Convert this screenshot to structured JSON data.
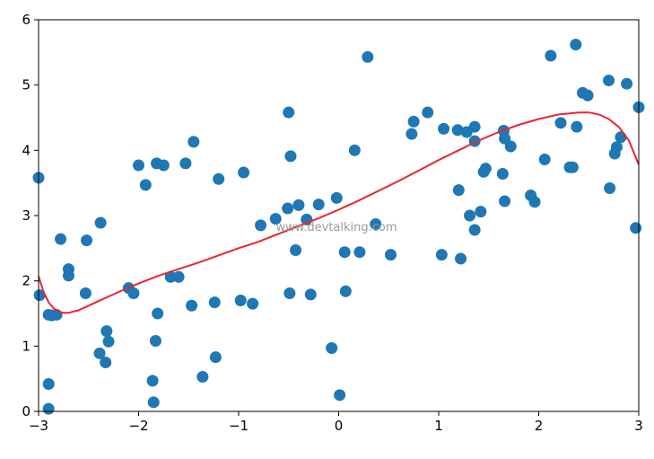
{
  "watermark": "www.devtalking.com",
  "chart_data": {
    "type": "scatter",
    "title": "",
    "xlabel": "",
    "ylabel": "",
    "xlim": [
      -3,
      3
    ],
    "ylim": [
      0,
      6
    ],
    "x_ticks": [
      -3,
      -2,
      -1,
      0,
      1,
      2,
      3
    ],
    "x_tick_labels": [
      "−3",
      "−2",
      "−1",
      "0",
      "1",
      "2",
      "3"
    ],
    "y_ticks": [
      0,
      1,
      2,
      3,
      4,
      5,
      6
    ],
    "y_tick_labels": [
      "0",
      "1",
      "2",
      "3",
      "4",
      "5",
      "6"
    ],
    "grid": false,
    "series": [
      {
        "kind": "scatter",
        "color": "#1f77b4",
        "points": [
          [
            -3.0,
            3.58
          ],
          [
            -2.99,
            1.78
          ],
          [
            -2.9,
            1.48
          ],
          [
            -2.87,
            1.47
          ],
          [
            -2.82,
            1.48
          ],
          [
            -2.9,
            0.42
          ],
          [
            -2.9,
            0.04
          ],
          [
            -2.78,
            2.64
          ],
          [
            -2.7,
            2.18
          ],
          [
            -2.7,
            2.08
          ],
          [
            -2.52,
            2.62
          ],
          [
            -2.53,
            1.81
          ],
          [
            -2.38,
            2.89
          ],
          [
            -2.39,
            0.89
          ],
          [
            -2.32,
            1.23
          ],
          [
            -2.3,
            1.07
          ],
          [
            -2.33,
            0.75
          ],
          [
            -2.1,
            1.89
          ],
          [
            -2.05,
            1.81
          ],
          [
            -2.0,
            3.77
          ],
          [
            -1.93,
            3.47
          ],
          [
            -1.82,
            3.8
          ],
          [
            -1.75,
            3.77
          ],
          [
            -1.81,
            1.5
          ],
          [
            -1.83,
            1.08
          ],
          [
            -1.86,
            0.47
          ],
          [
            -1.85,
            0.14
          ],
          [
            -1.68,
            2.06
          ],
          [
            -1.6,
            2.06
          ],
          [
            -1.53,
            3.8
          ],
          [
            -1.45,
            4.13
          ],
          [
            -1.47,
            1.62
          ],
          [
            -1.36,
            0.53
          ],
          [
            -1.24,
            1.67
          ],
          [
            -1.23,
            0.83
          ],
          [
            -1.2,
            3.56
          ],
          [
            -0.98,
            1.7
          ],
          [
            -0.95,
            3.66
          ],
          [
            -0.86,
            1.65
          ],
          [
            -0.78,
            2.85
          ],
          [
            -0.63,
            2.95
          ],
          [
            -0.51,
            3.11
          ],
          [
            -0.5,
            4.58
          ],
          [
            -0.48,
            3.91
          ],
          [
            -0.49,
            1.81
          ],
          [
            -0.43,
            2.47
          ],
          [
            -0.4,
            3.16
          ],
          [
            -0.32,
            2.94
          ],
          [
            -0.28,
            1.79
          ],
          [
            -0.2,
            3.17
          ],
          [
            -0.07,
            0.97
          ],
          [
            -0.02,
            3.27
          ],
          [
            0.01,
            0.25
          ],
          [
            0.06,
            2.44
          ],
          [
            0.07,
            1.84
          ],
          [
            0.16,
            4.0
          ],
          [
            0.21,
            2.44
          ],
          [
            0.29,
            5.43
          ],
          [
            0.37,
            2.87
          ],
          [
            0.52,
            2.4
          ],
          [
            0.73,
            4.25
          ],
          [
            0.75,
            4.44
          ],
          [
            0.89,
            4.58
          ],
          [
            1.03,
            2.4
          ],
          [
            1.05,
            4.33
          ],
          [
            1.19,
            4.31
          ],
          [
            1.2,
            3.39
          ],
          [
            1.22,
            2.34
          ],
          [
            1.28,
            4.28
          ],
          [
            1.31,
            3.0
          ],
          [
            1.36,
            4.36
          ],
          [
            1.36,
            4.14
          ],
          [
            1.36,
            2.78
          ],
          [
            1.42,
            3.06
          ],
          [
            1.45,
            3.67
          ],
          [
            1.47,
            3.72
          ],
          [
            1.65,
            4.3
          ],
          [
            1.66,
            4.18
          ],
          [
            1.64,
            3.64
          ],
          [
            1.66,
            3.22
          ],
          [
            1.72,
            4.06
          ],
          [
            1.92,
            3.31
          ],
          [
            1.96,
            3.21
          ],
          [
            2.06,
            3.86
          ],
          [
            2.12,
            5.45
          ],
          [
            2.22,
            4.42
          ],
          [
            2.31,
            3.74
          ],
          [
            2.34,
            3.74
          ],
          [
            2.37,
            5.62
          ],
          [
            2.38,
            4.36
          ],
          [
            2.44,
            4.88
          ],
          [
            2.49,
            4.84
          ],
          [
            2.7,
            5.07
          ],
          [
            2.71,
            3.42
          ],
          [
            2.76,
            3.95
          ],
          [
            2.78,
            4.05
          ],
          [
            2.82,
            4.2
          ],
          [
            2.88,
            5.02
          ],
          [
            2.97,
            2.81
          ],
          [
            3.0,
            4.66
          ]
        ]
      },
      {
        "kind": "line",
        "color": "#e8252e",
        "points": [
          [
            -3.0,
            2.07
          ],
          [
            -2.95,
            1.83
          ],
          [
            -2.9,
            1.67
          ],
          [
            -2.85,
            1.58
          ],
          [
            -2.8,
            1.53
          ],
          [
            -2.75,
            1.51
          ],
          [
            -2.7,
            1.51
          ],
          [
            -2.6,
            1.55
          ],
          [
            -2.5,
            1.62
          ],
          [
            -2.4,
            1.69
          ],
          [
            -2.2,
            1.83
          ],
          [
            -2.0,
            1.96
          ],
          [
            -1.8,
            2.08
          ],
          [
            -1.6,
            2.18
          ],
          [
            -1.4,
            2.28
          ],
          [
            -1.2,
            2.39
          ],
          [
            -1.0,
            2.5
          ],
          [
            -0.8,
            2.6
          ],
          [
            -0.6,
            2.72
          ],
          [
            -0.4,
            2.84
          ],
          [
            -0.2,
            2.96
          ],
          [
            0.0,
            3.09
          ],
          [
            0.2,
            3.23
          ],
          [
            0.4,
            3.38
          ],
          [
            0.6,
            3.53
          ],
          [
            0.8,
            3.69
          ],
          [
            1.0,
            3.85
          ],
          [
            1.2,
            4.0
          ],
          [
            1.4,
            4.15
          ],
          [
            1.6,
            4.28
          ],
          [
            1.8,
            4.39
          ],
          [
            2.0,
            4.48
          ],
          [
            2.2,
            4.55
          ],
          [
            2.4,
            4.58
          ],
          [
            2.5,
            4.58
          ],
          [
            2.6,
            4.55
          ],
          [
            2.7,
            4.48
          ],
          [
            2.8,
            4.36
          ],
          [
            2.9,
            4.15
          ],
          [
            3.0,
            3.78
          ]
        ]
      }
    ]
  }
}
